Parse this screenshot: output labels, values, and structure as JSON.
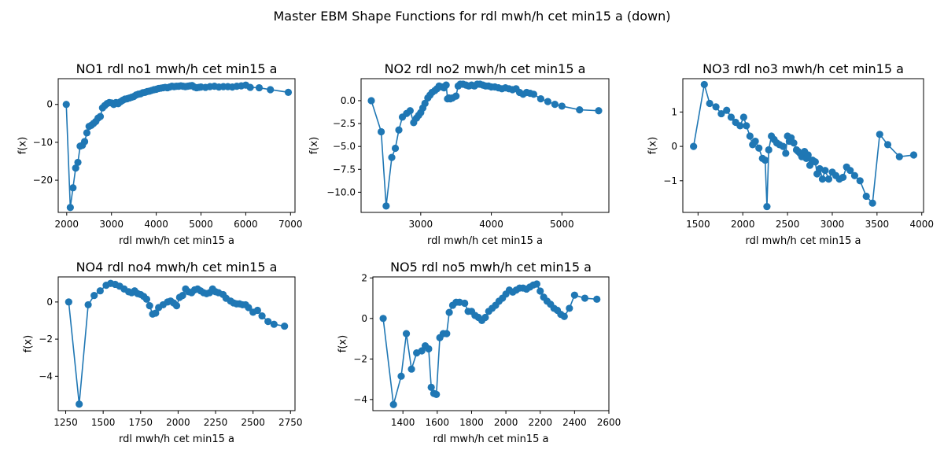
{
  "suptitle": "Master EBM Shape Functions for rdl  mwh/h cet min15 a (down)",
  "series_color": "#1f77b4",
  "chart_data": [
    {
      "type": "line",
      "title": "NO1 rdl no1 mwh/h cet min15 a",
      "xlabel": "rdl  mwh/h cet min15 a",
      "ylabel": "f(x)",
      "xlim": [
        1810,
        7100
      ],
      "ylim": [
        -28.5,
        6.8
      ],
      "xticks": [
        2000,
        3000,
        4000,
        5000,
        6000,
        7000
      ],
      "yticks": [
        -20,
        -10,
        0
      ],
      "x": [
        1990,
        2080,
        2140,
        2200,
        2250,
        2300,
        2350,
        2400,
        2450,
        2500,
        2550,
        2600,
        2650,
        2700,
        2750,
        2800,
        2850,
        2900,
        2950,
        3000,
        3050,
        3100,
        3150,
        3200,
        3250,
        3300,
        3350,
        3400,
        3450,
        3500,
        3550,
        3600,
        3650,
        3700,
        3750,
        3800,
        3850,
        3900,
        3950,
        4000,
        4050,
        4100,
        4150,
        4200,
        4250,
        4300,
        4350,
        4400,
        4450,
        4500,
        4550,
        4600,
        4650,
        4700,
        4750,
        4800,
        4850,
        4900,
        4950,
        5000,
        5100,
        5200,
        5300,
        5400,
        5500,
        5600,
        5700,
        5800,
        5900,
        6000,
        6100,
        6300,
        6550,
        6950
      ],
      "y": [
        0,
        -27.2,
        -22,
        -16.8,
        -15.3,
        -11,
        -10.8,
        -9.8,
        -7.5,
        -5.8,
        -5.5,
        -5,
        -4.5,
        -3.6,
        -3.2,
        -0.9,
        -0.3,
        0.2,
        0.5,
        0.4,
        0,
        0.5,
        0.2,
        0.7,
        1.1,
        1.4,
        1.5,
        1.7,
        1.9,
        2.1,
        2.5,
        2.7,
        2.8,
        3.1,
        3.2,
        3.4,
        3.5,
        3.7,
        3.9,
        4,
        4.2,
        4.3,
        4.4,
        4.5,
        4.4,
        4.6,
        4.8,
        4.7,
        4.8,
        4.8,
        4.9,
        4.8,
        4.7,
        4.8,
        4.9,
        5,
        4.6,
        4.4,
        4.5,
        4.6,
        4.5,
        4.7,
        4.8,
        4.6,
        4.7,
        4.7,
        4.6,
        4.8,
        4.9,
        5.1,
        4.5,
        4.4,
        3.9,
        3.2
      ]
    },
    {
      "type": "line",
      "title": "NO2 rdl no2 mwh/h cet min15 a",
      "xlabel": "rdl  mwh/h cet min15 a",
      "ylabel": "f(x)",
      "xlim": [
        2155,
        5665
      ],
      "ylim": [
        -12.2,
        2.4
      ],
      "xticks": [
        3000,
        4000,
        5000
      ],
      "yticks": [
        -10.0,
        -7.5,
        -5.0,
        -2.5,
        0.0
      ],
      "tick_labels_y": [
        "−10.0",
        "−7.5",
        "−5.0",
        "−2.5",
        "0.0"
      ],
      "x": [
        2300,
        2440,
        2510,
        2590,
        2640,
        2690,
        2740,
        2800,
        2850,
        2900,
        2940,
        2970,
        3000,
        3030,
        3060,
        3100,
        3130,
        3160,
        3200,
        3230,
        3260,
        3300,
        3330,
        3360,
        3380,
        3400,
        3420,
        3450,
        3500,
        3530,
        3560,
        3600,
        3640,
        3680,
        3720,
        3760,
        3800,
        3840,
        3880,
        3920,
        3960,
        4000,
        4050,
        4100,
        4150,
        4200,
        4250,
        4300,
        4350,
        4400,
        4450,
        4500,
        4550,
        4600,
        4700,
        4800,
        4900,
        5000,
        5250,
        5520
      ],
      "y": [
        0,
        -3.4,
        -11.5,
        -6.2,
        -5.2,
        -3.2,
        -1.8,
        -1.4,
        -1.1,
        -2.4,
        -1.9,
        -1.6,
        -1.3,
        -0.8,
        -0.3,
        0.3,
        0.6,
        0.9,
        1.1,
        1.3,
        1.6,
        1.5,
        1.4,
        1.7,
        0.2,
        0.3,
        0.2,
        0.3,
        0.5,
        1.6,
        1.8,
        1.8,
        1.7,
        1.6,
        1.7,
        1.6,
        1.8,
        1.8,
        1.7,
        1.6,
        1.6,
        1.5,
        1.5,
        1.4,
        1.3,
        1.4,
        1.3,
        1.2,
        1.3,
        0.9,
        0.7,
        0.9,
        0.8,
        0.7,
        0.2,
        -0.1,
        -0.4,
        -0.6,
        -1,
        -1.1
      ]
    },
    {
      "type": "line",
      "title": "NO3 rdl no3 mwh/h cet min15 a",
      "xlabel": "rdl  mwh/h cet min15 a",
      "ylabel": "f(x)",
      "xlim": [
        1330,
        4020
      ],
      "ylim": [
        -1.92,
        1.97
      ],
      "xticks": [
        1500,
        2000,
        2500,
        3000,
        3500,
        4000
      ],
      "yticks": [
        -1,
        0,
        1
      ],
      "x": [
        1450,
        1570,
        1630,
        1700,
        1760,
        1820,
        1870,
        1920,
        1970,
        2010,
        2040,
        2080,
        2110,
        2140,
        2180,
        2220,
        2250,
        2270,
        2290,
        2320,
        2350,
        2380,
        2410,
        2450,
        2480,
        2500,
        2520,
        2540,
        2570,
        2600,
        2620,
        2640,
        2660,
        2690,
        2710,
        2730,
        2750,
        2780,
        2810,
        2830,
        2860,
        2890,
        2920,
        2960,
        3000,
        3040,
        3080,
        3120,
        3160,
        3200,
        3250,
        3310,
        3380,
        3450,
        3530,
        3620,
        3750,
        3910
      ],
      "y": [
        0,
        1.8,
        1.25,
        1.15,
        0.95,
        1.05,
        0.85,
        0.7,
        0.6,
        0.85,
        0.6,
        0.3,
        0.05,
        0.15,
        -0.05,
        -0.35,
        -0.4,
        -1.75,
        -0.1,
        0.3,
        0.2,
        0.1,
        0.05,
        0,
        -0.2,
        0.3,
        0.15,
        0.25,
        0.1,
        -0.1,
        -0.15,
        -0.2,
        -0.3,
        -0.15,
        -0.35,
        -0.25,
        -0.55,
        -0.4,
        -0.45,
        -0.8,
        -0.65,
        -0.95,
        -0.7,
        -0.95,
        -0.75,
        -0.85,
        -0.95,
        -0.9,
        -0.6,
        -0.7,
        -0.85,
        -1,
        -1.45,
        -1.65,
        0.35,
        0.05,
        -0.3,
        -0.25
      ]
    },
    {
      "type": "line",
      "title": "NO4 rdl no4 mwh/h cet min15 a",
      "xlabel": "rdl  mwh/h cet min15 a",
      "ylabel": "f(x)",
      "xlim": [
        1200,
        2780
      ],
      "ylim": [
        -5.85,
        1.35
      ],
      "xticks": [
        1250,
        1500,
        1750,
        2000,
        2250,
        2500,
        2750
      ],
      "yticks": [
        -4,
        -2,
        0
      ],
      "x": [
        1270,
        1340,
        1400,
        1440,
        1480,
        1520,
        1550,
        1580,
        1610,
        1640,
        1670,
        1690,
        1710,
        1730,
        1750,
        1770,
        1790,
        1810,
        1830,
        1850,
        1870,
        1900,
        1930,
        1950,
        1970,
        1990,
        2010,
        2030,
        2050,
        2070,
        2090,
        2110,
        2130,
        2150,
        2170,
        2190,
        2210,
        2230,
        2250,
        2270,
        2300,
        2320,
        2350,
        2370,
        2390,
        2410,
        2430,
        2450,
        2470,
        2500,
        2530,
        2560,
        2600,
        2640,
        2710
      ],
      "y": [
        0,
        -5.5,
        -0.15,
        0.35,
        0.6,
        0.9,
        1,
        0.95,
        0.85,
        0.7,
        0.55,
        0.5,
        0.6,
        0.45,
        0.4,
        0.3,
        0.15,
        -0.2,
        -0.65,
        -0.6,
        -0.3,
        -0.15,
        0,
        0.05,
        -0.05,
        -0.2,
        0.25,
        0.35,
        0.7,
        0.55,
        0.5,
        0.65,
        0.7,
        0.6,
        0.5,
        0.45,
        0.5,
        0.7,
        0.55,
        0.5,
        0.4,
        0.2,
        0.05,
        -0.05,
        -0.1,
        -0.1,
        -0.15,
        -0.15,
        -0.3,
        -0.55,
        -0.45,
        -0.75,
        -1.05,
        -1.2,
        -1.3
      ]
    },
    {
      "type": "line",
      "title": "NO5 rdl no5 mwh/h cet min15 a",
      "xlabel": "rdl  mwh/h cet min15 a",
      "ylabel": "f(x)",
      "xlim": [
        1225,
        2600
      ],
      "ylim": [
        -4.55,
        2.05
      ],
      "xticks": [
        1400,
        1600,
        1800,
        2000,
        2200,
        2400,
        2600
      ],
      "yticks": [
        -4,
        -2,
        0,
        2
      ],
      "x": [
        1285,
        1345,
        1390,
        1420,
        1450,
        1480,
        1510,
        1530,
        1550,
        1565,
        1580,
        1595,
        1615,
        1635,
        1655,
        1670,
        1690,
        1710,
        1730,
        1760,
        1780,
        1800,
        1820,
        1840,
        1860,
        1880,
        1900,
        1920,
        1940,
        1960,
        1980,
        2000,
        2020,
        2040,
        2060,
        2080,
        2100,
        2120,
        2140,
        2160,
        2180,
        2200,
        2220,
        2240,
        2260,
        2280,
        2300,
        2320,
        2340,
        2370,
        2400,
        2460,
        2530
      ],
      "y": [
        0,
        -4.25,
        -2.85,
        -0.75,
        -2.5,
        -1.7,
        -1.6,
        -1.35,
        -1.5,
        -3.4,
        -3.7,
        -3.75,
        -0.95,
        -0.75,
        -0.75,
        0.3,
        0.65,
        0.8,
        0.8,
        0.75,
        0.35,
        0.35,
        0.15,
        0.05,
        -0.1,
        0.05,
        0.35,
        0.5,
        0.65,
        0.85,
        1,
        1.2,
        1.4,
        1.3,
        1.4,
        1.5,
        1.5,
        1.45,
        1.55,
        1.65,
        1.7,
        1.35,
        1.05,
        0.85,
        0.7,
        0.5,
        0.4,
        0.2,
        0.1,
        0.5,
        1.15,
        1,
        0.95
      ]
    }
  ]
}
